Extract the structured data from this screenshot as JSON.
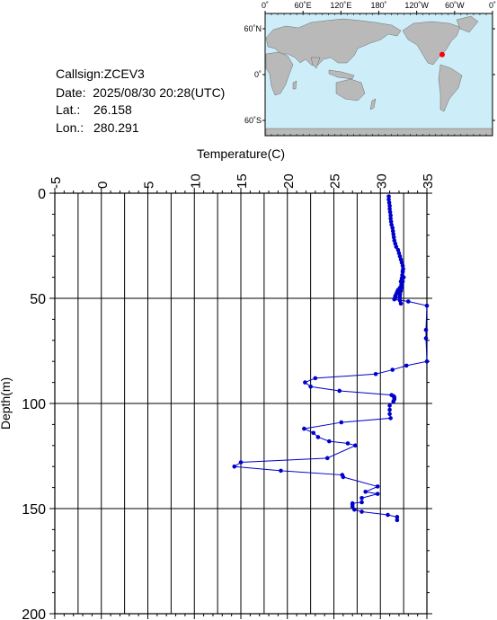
{
  "station": {
    "callsign_label": "Callsign:",
    "callsign": "ZCEV3",
    "date_label": "Date:",
    "date": "2025/08/30 20:28(UTC)",
    "lat_label": "Lat.:",
    "lat": "26.158",
    "lon_label": "Lon.:",
    "lon": "280.291"
  },
  "map": {
    "lon_ticks": [
      "0˚",
      "60˚E",
      "120˚E",
      "180˚",
      "120˚W",
      "60˚W",
      "0˚"
    ],
    "lat_ticks": [
      "60˚N",
      "0˚",
      "60˚S"
    ],
    "ocean_color": "#cdeef8",
    "land_color": "#b9b9b9",
    "marker_color": "#ff0000"
  },
  "chart_data": {
    "type": "line",
    "xlabel": "Temperature(C)",
    "ylabel": "Depth(m)",
    "xlim": [
      -5,
      35
    ],
    "ylim": [
      200,
      0
    ],
    "x_ticks": [
      "-5",
      "0",
      "5",
      "10",
      "15",
      "20",
      "25",
      "30",
      "35"
    ],
    "y_ticks": [
      "0",
      "50",
      "100",
      "150",
      "200"
    ],
    "grid": true,
    "line_color": "#0000cc",
    "series": [
      {
        "x": [
          30.9,
          30.9,
          30.95,
          31.0,
          31.0,
          31.05,
          31.1,
          31.1,
          31.15,
          31.2,
          31.3,
          31.35,
          31.4,
          31.45,
          31.5,
          31.6,
          31.7,
          31.9,
          32.0,
          32.1,
          32.2,
          32.3,
          32.4,
          32.45,
          32.4,
          32.35,
          32.3,
          32.2,
          32.25,
          32.3,
          32.2,
          32.1,
          32.05,
          32.1,
          32.2,
          32.4,
          32.5,
          32.4,
          32.3,
          32.1,
          31.9,
          31.8,
          31.7,
          31.6,
          31.6,
          31.55,
          31.5,
          33.0,
          35.0,
          34.9,
          34.9,
          35.0,
          32.8,
          31.3,
          29.5,
          23.0,
          21.9,
          22.5,
          25.6,
          31.2,
          31.4,
          31.5,
          31.5,
          31.5,
          31.4,
          31.0,
          31.0,
          31.0,
          31.1,
          25.8,
          21.8,
          22.8,
          23.3,
          24.5,
          26.5,
          27.3,
          24.3,
          15.0,
          14.3,
          19.3,
          25.9,
          26.0,
          29.7,
          28.4,
          29.7,
          28.0,
          28.0,
          27.0,
          27.0,
          27.0,
          27.2,
          28.0,
          30.8,
          31.8,
          31.8
        ],
        "y": [
          1.5,
          3.0,
          4.5,
          6.0,
          7.5,
          9.0,
          10.5,
          12.0,
          13.5,
          15.0,
          16.5,
          18.0,
          19.5,
          21.0,
          22.5,
          24.0,
          25.5,
          27.0,
          28.5,
          30.0,
          31.5,
          33.0,
          34.5,
          36.0,
          37.5,
          39.0,
          40.5,
          42.0,
          43.5,
          45.0,
          46.5,
          48.0,
          49.5,
          51.0,
          52.5,
          37.0,
          40.0,
          42.0,
          44.0,
          45.0,
          46.0,
          47.0,
          48.0,
          49.0,
          49.5,
          50.0,
          50.5,
          51.5,
          53.5,
          65.0,
          69.0,
          80.0,
          82.0,
          84.0,
          86.0,
          88.0,
          90.0,
          92.0,
          94.0,
          96.0,
          96.5,
          97.0,
          97.5,
          98.0,
          99.0,
          101.0,
          103.0,
          105.0,
          107.0,
          109.0,
          112.0,
          114.0,
          116.0,
          118.0,
          119.0,
          120.0,
          126.0,
          128.0,
          130.0,
          132.0,
          134.0,
          135.0,
          139.5,
          142.0,
          143.0,
          145.0,
          147.0,
          147.5,
          148.0,
          149.0,
          150.5,
          151.5,
          153.0,
          154.0,
          155.5
        ]
      }
    ]
  }
}
